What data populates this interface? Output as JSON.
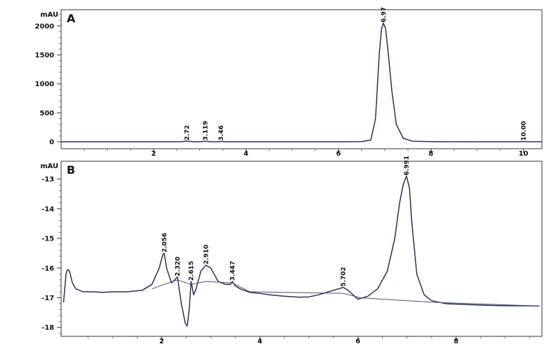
{
  "chart_data": [
    {
      "type": "line",
      "panel_label": "A",
      "ylabel": "mAU",
      "xlim": [
        0,
        10.4
      ],
      "ylim": [
        -120,
        2280
      ],
      "y_ticks": [
        "0",
        "500",
        "1000",
        "1500",
        "2000"
      ],
      "x_ticks": [
        "2",
        "4",
        "6",
        "8",
        "10"
      ],
      "peaks": [
        {
          "label": "2.72",
          "x": 2.72,
          "y": 12
        },
        {
          "label": "3.119",
          "x": 3.12,
          "y": 8
        },
        {
          "label": "3.46",
          "x": 3.46,
          "y": 6
        },
        {
          "label": "6.97",
          "x": 6.97,
          "y": 2050
        },
        {
          "label": "10.00",
          "x": 10.0,
          "y": 5
        }
      ],
      "series": [
        {
          "x": [
            0.0,
            1.0,
            2.0,
            2.6,
            2.72,
            2.85,
            3.0,
            3.12,
            3.25,
            3.4,
            3.46,
            3.6,
            4.0,
            5.0,
            6.0,
            6.5,
            6.7,
            6.8,
            6.88,
            6.93,
            6.97,
            7.02,
            7.08,
            7.15,
            7.25,
            7.4,
            7.6,
            8.0,
            9.0,
            9.9,
            10.0,
            10.1,
            10.4
          ],
          "y": [
            0,
            0,
            0,
            0,
            12,
            0,
            0,
            8,
            0,
            0,
            6,
            0,
            0,
            0,
            0,
            2,
            30,
            400,
            1500,
            1950,
            2050,
            1950,
            1500,
            900,
            300,
            60,
            10,
            2,
            0,
            0,
            5,
            0,
            0
          ]
        }
      ]
    },
    {
      "type": "line",
      "panel_label": "B",
      "ylabel": "mAU",
      "xlim": [
        -0.05,
        9.75
      ],
      "ylim": [
        -18.3,
        -12.4
      ],
      "y_ticks": [
        "-13",
        "-14",
        "-15",
        "-16",
        "-17",
        "-18"
      ],
      "x_ticks": [
        "2",
        "4",
        "6",
        "8"
      ],
      "peaks": [
        {
          "label": "2.056",
          "x": 2.05,
          "y": -15.5
        },
        {
          "label": "2.320",
          "x": 2.32,
          "y": -16.3
        },
        {
          "label": "2.615",
          "x": 2.6,
          "y": -16.45
        },
        {
          "label": "2.910",
          "x": 2.9,
          "y": -15.9
        },
        {
          "label": "3.447",
          "x": 3.44,
          "y": -16.45
        },
        {
          "label": "5.702",
          "x": 5.7,
          "y": -16.65
        },
        {
          "label": "6.991",
          "x": 6.99,
          "y": -12.9
        }
      ],
      "series": [
        {
          "x": [
            0.0,
            0.05,
            0.08,
            0.12,
            0.18,
            0.25,
            0.4,
            0.6,
            0.8,
            1.0,
            1.3,
            1.6,
            1.8,
            1.95,
            2.02,
            2.05,
            2.1,
            2.2,
            2.32,
            2.4,
            2.48,
            2.52,
            2.56,
            2.6,
            2.65,
            2.7,
            2.8,
            2.9,
            3.0,
            3.15,
            3.3,
            3.4,
            3.44,
            3.5,
            3.6,
            3.8,
            4.0,
            4.2,
            4.5,
            4.8,
            5.0,
            5.2,
            5.4,
            5.6,
            5.7,
            5.8,
            6.0,
            6.2,
            6.4,
            6.6,
            6.75,
            6.85,
            6.92,
            6.99,
            7.05,
            7.1,
            7.2,
            7.35,
            7.5,
            7.8,
            8.2,
            8.6,
            9.0,
            9.4,
            9.7
          ],
          "y": [
            -17.15,
            -16.2,
            -16.05,
            -16.1,
            -16.5,
            -16.7,
            -16.8,
            -16.8,
            -16.82,
            -16.8,
            -16.8,
            -16.75,
            -16.55,
            -16.0,
            -15.55,
            -15.5,
            -16.0,
            -16.5,
            -16.3,
            -17.2,
            -17.85,
            -17.95,
            -17.4,
            -16.45,
            -16.9,
            -16.7,
            -16.1,
            -15.9,
            -16.0,
            -16.45,
            -16.55,
            -16.55,
            -16.45,
            -16.6,
            -16.7,
            -16.82,
            -16.85,
            -16.9,
            -16.95,
            -16.98,
            -16.97,
            -16.9,
            -16.8,
            -16.7,
            -16.65,
            -16.75,
            -17.05,
            -16.95,
            -16.7,
            -16.1,
            -15.0,
            -13.8,
            -13.2,
            -12.9,
            -13.3,
            -14.5,
            -16.2,
            -16.9,
            -17.1,
            -17.2,
            -17.23,
            -17.25,
            -17.27,
            -17.27,
            -17.28
          ]
        },
        {
          "x": [
            1.8,
            2.05,
            2.32,
            2.6,
            2.9,
            3.44,
            3.8,
            5.7,
            6.05,
            7.5,
            9.7
          ],
          "y": [
            -16.7,
            -16.55,
            -16.4,
            -16.55,
            -16.45,
            -16.5,
            -16.8,
            -16.85,
            -17.0,
            -17.15,
            -17.28
          ]
        }
      ]
    }
  ]
}
